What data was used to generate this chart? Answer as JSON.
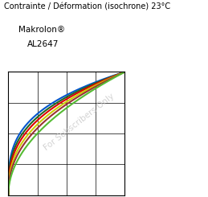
{
  "title_line1": "Contrainte / Déformation (isochrone) 23°C",
  "subtitle_line1": "Makrolon®",
  "subtitle_line2": "AL2647",
  "watermark": "For Subscribers Only",
  "xlim": [
    0,
    1
  ],
  "ylim": [
    0,
    1
  ],
  "background_color": "#ffffff",
  "curves": [
    {
      "color": "#0055cc",
      "power": 0.3
    },
    {
      "color": "#226622",
      "power": 0.33
    },
    {
      "color": "#dd0000",
      "power": 0.36
    },
    {
      "color": "#cccc00",
      "power": 0.4
    },
    {
      "color": "#993333",
      "power": 0.44
    },
    {
      "color": "#55bb33",
      "power": 0.5
    }
  ],
  "grid_nx": 4,
  "grid_ny": 4,
  "watermark_color": "#cccccc",
  "watermark_rotation": 38,
  "watermark_fontsize": 7.5,
  "title_fontsize": 7.0,
  "subtitle_fontsize": 7.5
}
